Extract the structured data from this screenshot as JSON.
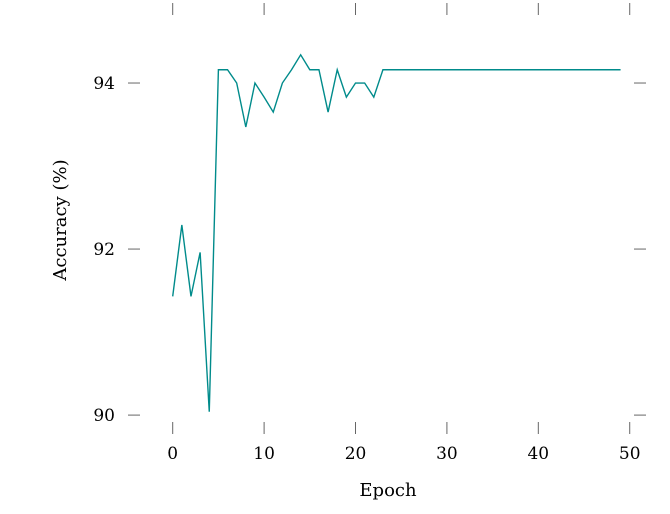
{
  "chart_data": {
    "type": "line",
    "title": "",
    "xlabel": "Epoch",
    "ylabel": "Accuracy (%)",
    "xlim": [
      -5,
      52
    ],
    "ylim": [
      89.7,
      95
    ],
    "x_ticks": [
      0,
      10,
      20,
      30,
      40,
      50
    ],
    "x_tick_labels": [
      "0",
      "10",
      "20",
      "30",
      "40",
      "50"
    ],
    "y_ticks": [
      90,
      92,
      94
    ],
    "y_tick_labels": [
      "90",
      "92",
      "94"
    ],
    "grid": false,
    "legend": "none",
    "series": [
      {
        "color": "#008b8b",
        "x": [
          0,
          1,
          2,
          3,
          4,
          5,
          6,
          7,
          8,
          9,
          10,
          11,
          12,
          13,
          14,
          15,
          16,
          17,
          18,
          19,
          20,
          21,
          22,
          23,
          24,
          25,
          26,
          27,
          28,
          29,
          30,
          31,
          32,
          33,
          34,
          35,
          36,
          37,
          38,
          39,
          40,
          41,
          42,
          43,
          44,
          45,
          46,
          47,
          48,
          49
        ],
        "y": [
          91.43,
          92.29,
          91.43,
          91.96,
          90.04,
          94.16,
          94.16,
          94.0,
          93.47,
          94.0,
          93.83,
          93.65,
          94.0,
          94.16,
          94.34,
          94.16,
          94.16,
          93.65,
          94.16,
          93.83,
          94.0,
          94.0,
          93.83,
          94.16,
          94.16,
          94.16,
          94.16,
          94.16,
          94.16,
          94.16,
          94.16,
          94.16,
          94.16,
          94.16,
          94.16,
          94.16,
          94.16,
          94.16,
          94.16,
          94.16,
          94.16,
          94.16,
          94.16,
          94.16,
          94.16,
          94.16,
          94.16,
          94.16,
          94.16,
          94.16
        ]
      }
    ]
  }
}
